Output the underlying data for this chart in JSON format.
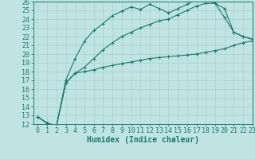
{
  "xlabel": "Humidex (Indice chaleur)",
  "xlim": [
    -0.5,
    23
  ],
  "ylim": [
    12,
    26
  ],
  "xticks": [
    0,
    1,
    2,
    3,
    4,
    5,
    6,
    7,
    8,
    9,
    10,
    11,
    12,
    13,
    14,
    15,
    16,
    17,
    18,
    19,
    20,
    21,
    22,
    23
  ],
  "yticks": [
    12,
    13,
    14,
    15,
    16,
    17,
    18,
    19,
    20,
    21,
    22,
    23,
    24,
    25,
    26
  ],
  "bg_color": "#c0e4e4",
  "grid_color": "#a8d0d0",
  "line_color": "#1a7870",
  "line1_x": [
    0,
    1,
    2,
    3,
    4,
    5,
    6,
    7,
    8,
    9,
    10,
    11,
    12,
    13,
    14,
    15,
    16,
    17,
    18,
    19,
    20,
    21,
    22,
    23
  ],
  "line1_y": [
    12.8,
    12.1,
    11.8,
    17.0,
    19.5,
    21.5,
    22.7,
    23.5,
    24.4,
    24.9,
    25.4,
    25.1,
    25.7,
    25.2,
    24.7,
    25.2,
    25.7,
    26.2,
    26.2,
    25.8,
    24.2,
    22.5,
    22.0,
    21.7
  ],
  "line2_x": [
    0,
    1,
    2,
    3,
    4,
    5,
    6,
    7,
    8,
    9,
    10,
    11,
    12,
    13,
    14,
    15,
    16,
    17,
    18,
    19,
    20,
    21,
    22,
    23
  ],
  "line2_y": [
    12.8,
    12.1,
    11.8,
    16.7,
    17.8,
    18.0,
    18.2,
    18.5,
    18.7,
    18.9,
    19.1,
    19.3,
    19.5,
    19.6,
    19.7,
    19.8,
    19.9,
    20.0,
    20.2,
    20.4,
    20.6,
    21.0,
    21.3,
    21.5
  ],
  "line3_x": [
    0,
    1,
    2,
    3,
    4,
    5,
    6,
    7,
    8,
    9,
    10,
    11,
    12,
    13,
    14,
    15,
    16,
    17,
    18,
    19,
    20,
    21,
    22,
    23
  ],
  "line3_y": [
    12.8,
    12.1,
    11.8,
    16.7,
    17.8,
    18.5,
    19.5,
    20.5,
    21.3,
    22.0,
    22.5,
    23.0,
    23.4,
    23.8,
    24.0,
    24.5,
    25.0,
    25.5,
    25.8,
    25.8,
    25.2,
    22.5,
    22.0,
    21.7
  ],
  "tick_fontsize": 6,
  "xlabel_fontsize": 7
}
